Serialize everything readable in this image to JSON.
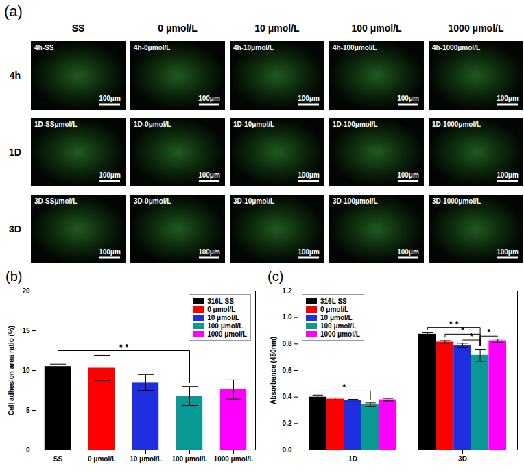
{
  "image_grid": {
    "title": "(a)",
    "columns": [
      "SS",
      "0 μmol/L",
      "10 μmol/L",
      "100 μmol/L",
      "1000 μmol/L"
    ],
    "rows": [
      "4h",
      "1D",
      "3D"
    ],
    "cells": [
      [
        "4h-SS",
        "4h-0μmol/L",
        "4h-10μmol/L",
        "4h-100μmol/L",
        "4h-1000μmol/L"
      ],
      [
        "1D-SSμmol/L",
        "1D-0μmol/L",
        "1D-10μmol/L",
        "1D-100μmol/L",
        "1D-1000μmol/L"
      ],
      [
        "3D-SSμmol/L",
        "3D-0μmol/L",
        "3D-10μmol/L",
        "3D-100μmol/L",
        "3D-1000μmol/L"
      ]
    ],
    "scale_bar": "100μm"
  },
  "chart_data": [
    {
      "type": "bar",
      "title": "(b)",
      "ylabel": "Cell adhesion area ratio (%)",
      "categories": [
        "SS",
        "0 μmol/L",
        "10 μmol/L",
        "100 μmol/L",
        "1000 μmol/L"
      ],
      "series": [
        {
          "name": "316L SS",
          "color": "#000000",
          "values": [
            10.5,
            null,
            null,
            null,
            null
          ],
          "errors": [
            0.3,
            null,
            null,
            null,
            null
          ]
        },
        {
          "name": "0 μmol/L",
          "color": "#ff0000",
          "values": [
            null,
            10.3,
            null,
            null,
            null
          ],
          "errors": [
            null,
            1.6,
            null,
            null,
            null
          ]
        },
        {
          "name": "10 μmol/L",
          "color": "#1f2fe0",
          "values": [
            null,
            null,
            8.5,
            null,
            null
          ],
          "errors": [
            null,
            null,
            1.0,
            null,
            null
          ]
        },
        {
          "name": "100 μmol/L",
          "color": "#0a9a96",
          "values": [
            null,
            null,
            null,
            6.8,
            null
          ],
          "errors": [
            null,
            null,
            null,
            1.2,
            null
          ]
        },
        {
          "name": "1000 μmol/L",
          "color": "#ff00ff",
          "values": [
            null,
            null,
            null,
            null,
            7.6
          ],
          "errors": [
            null,
            null,
            null,
            null,
            1.2
          ]
        }
      ],
      "ylim": [
        0,
        20
      ],
      "yticks": [
        0,
        5,
        10,
        15,
        20
      ],
      "legend": "top-right",
      "annotations": [
        {
          "text": "* *",
          "from": "316L SS",
          "to": "100 μmol/L",
          "y": 12.5
        }
      ]
    },
    {
      "type": "bar",
      "title": "(c)",
      "ylabel": "Absorbance (450nm)",
      "categories": [
        "1D",
        "3D"
      ],
      "series": [
        {
          "name": "316L SS",
          "color": "#000000",
          "values": [
            0.4,
            0.875
          ],
          "errors": [
            0.015,
            0.01
          ]
        },
        {
          "name": "0 μmol/L",
          "color": "#ff0000",
          "values": [
            0.385,
            0.815
          ],
          "errors": [
            0.008,
            0.01
          ]
        },
        {
          "name": "10 μmol/L",
          "color": "#1f2fe0",
          "values": [
            0.373,
            0.79
          ],
          "errors": [
            0.01,
            0.015
          ]
        },
        {
          "name": "100 μmol/L",
          "color": "#0a9a96",
          "values": [
            0.343,
            0.715
          ],
          "errors": [
            0.012,
            0.045
          ]
        },
        {
          "name": "1000 μmol/L",
          "color": "#ff00ff",
          "values": [
            0.38,
            0.825
          ],
          "errors": [
            0.01,
            0.012
          ]
        }
      ],
      "ylim": [
        0,
        1.2
      ],
      "yticks": [
        {
          "value": 0,
          "label": "0.0"
        },
        {
          "value": 0.2,
          "label": "0.2"
        },
        {
          "value": 0.4,
          "label": "0.4"
        },
        {
          "value": 0.6,
          "label": "0.6"
        },
        {
          "value": 0.8,
          "label": "0.8"
        },
        {
          "value": 1.0,
          "label": "1.0"
        },
        {
          "value": 1.2,
          "label": "1.2"
        }
      ],
      "legend": "top-left",
      "annotations": [
        {
          "text": "*",
          "category": "1D",
          "from": "316L SS",
          "to": "100 μmol/L",
          "y": 0.445
        },
        {
          "text": "* *",
          "category": "3D",
          "from": "316L SS",
          "to": "100 μmol/L",
          "y": 0.925
        },
        {
          "text": "*",
          "category": "3D",
          "from": "0 μmol/L",
          "to": "100 μmol/L",
          "y": 0.875
        },
        {
          "text": "*",
          "category": "3D",
          "from": "10 μmol/L",
          "to": "100 μmol/L",
          "y": 0.83
        },
        {
          "text": "*",
          "category": "3D",
          "from": "100 μmol/L",
          "to": "1000 μmol/L",
          "y": 0.86
        }
      ]
    }
  ]
}
